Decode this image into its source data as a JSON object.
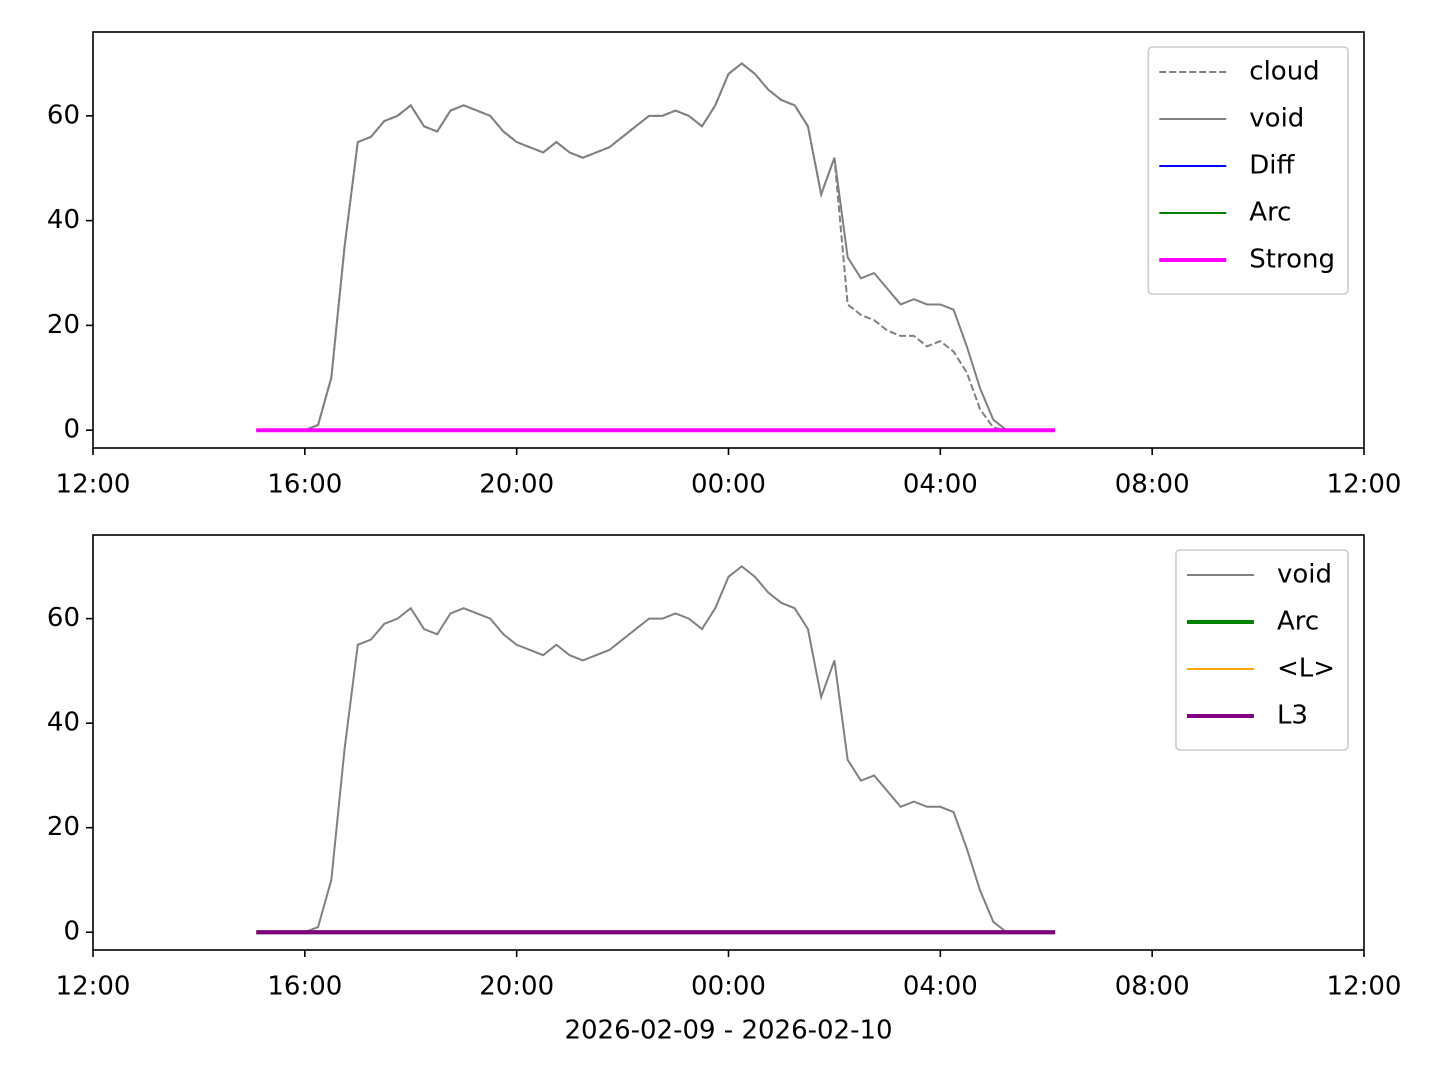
{
  "chart_data": [
    {
      "type": "line",
      "xlim": [
        "2026-02-09T12:00",
        "2026-02-10T12:00"
      ],
      "xticks": [
        {
          "value": "2026-02-09T12:00",
          "label": "12:00"
        },
        {
          "value": "2026-02-09T16:00",
          "label": "16:00"
        },
        {
          "value": "2026-02-09T20:00",
          "label": "20:00"
        },
        {
          "value": "2026-02-10T00:00",
          "label": "00:00"
        },
        {
          "value": "2026-02-10T04:00",
          "label": "04:00"
        },
        {
          "value": "2026-02-10T08:00",
          "label": "08:00"
        },
        {
          "value": "2026-02-10T12:00",
          "label": "12:00"
        }
      ],
      "ylim": [
        -3.4,
        76
      ],
      "yticks": [
        0,
        20,
        40,
        60
      ],
      "legend": "upper right",
      "series": [
        {
          "name": "cloud",
          "color": "#808080",
          "linestyle": "dashed",
          "linewidth": 1,
          "x": [
            "2026-02-09T16:00",
            "2026-02-09T16:15",
            "2026-02-09T16:30",
            "2026-02-09T16:45",
            "2026-02-09T17:00",
            "2026-02-09T17:15",
            "2026-02-09T17:30",
            "2026-02-09T17:45",
            "2026-02-09T18:00",
            "2026-02-09T18:15",
            "2026-02-09T18:30",
            "2026-02-09T18:45",
            "2026-02-09T19:00",
            "2026-02-09T19:15",
            "2026-02-09T19:30",
            "2026-02-09T19:45",
            "2026-02-09T20:00",
            "2026-02-09T20:15",
            "2026-02-09T20:30",
            "2026-02-09T20:45",
            "2026-02-09T21:00",
            "2026-02-09T21:15",
            "2026-02-09T21:30",
            "2026-02-09T21:45",
            "2026-02-09T22:00",
            "2026-02-09T22:15",
            "2026-02-09T22:30",
            "2026-02-09T22:45",
            "2026-02-09T23:00",
            "2026-02-09T23:15",
            "2026-02-09T23:30",
            "2026-02-09T23:45",
            "2026-02-10T00:00",
            "2026-02-10T00:15",
            "2026-02-10T00:30",
            "2026-02-10T00:45",
            "2026-02-10T01:00",
            "2026-02-10T01:15",
            "2026-02-10T01:30",
            "2026-02-10T01:45",
            "2026-02-10T02:00",
            "2026-02-10T02:15",
            "2026-02-10T02:30",
            "2026-02-10T02:45",
            "2026-02-10T03:00",
            "2026-02-10T03:15",
            "2026-02-10T03:30",
            "2026-02-10T03:45",
            "2026-02-10T04:00",
            "2026-02-10T04:15",
            "2026-02-10T04:30",
            "2026-02-10T04:45",
            "2026-02-10T05:00",
            "2026-02-10T05:15"
          ],
          "values": [
            0,
            1,
            10,
            35,
            55,
            56,
            59,
            60,
            62,
            58,
            57,
            61,
            62,
            61,
            60,
            57,
            55,
            54,
            53,
            55,
            53,
            52,
            53,
            54,
            56,
            58,
            60,
            60,
            61,
            60,
            58,
            62,
            68,
            70,
            68,
            65,
            63,
            62,
            58,
            45,
            52,
            24,
            22,
            21,
            19,
            18,
            18,
            16,
            17,
            15,
            11,
            4,
            0.5,
            0
          ]
        },
        {
          "name": "void",
          "color": "#808080",
          "linestyle": "solid",
          "linewidth": 1,
          "x": [
            "2026-02-09T16:00",
            "2026-02-09T16:15",
            "2026-02-09T16:30",
            "2026-02-09T16:45",
            "2026-02-09T17:00",
            "2026-02-09T17:15",
            "2026-02-09T17:30",
            "2026-02-09T17:45",
            "2026-02-09T18:00",
            "2026-02-09T18:15",
            "2026-02-09T18:30",
            "2026-02-09T18:45",
            "2026-02-09T19:00",
            "2026-02-09T19:15",
            "2026-02-09T19:30",
            "2026-02-09T19:45",
            "2026-02-09T20:00",
            "2026-02-09T20:15",
            "2026-02-09T20:30",
            "2026-02-09T20:45",
            "2026-02-09T21:00",
            "2026-02-09T21:15",
            "2026-02-09T21:30",
            "2026-02-09T21:45",
            "2026-02-09T22:00",
            "2026-02-09T22:15",
            "2026-02-09T22:30",
            "2026-02-09T22:45",
            "2026-02-09T23:00",
            "2026-02-09T23:15",
            "2026-02-09T23:30",
            "2026-02-09T23:45",
            "2026-02-10T00:00",
            "2026-02-10T00:15",
            "2026-02-10T00:30",
            "2026-02-10T00:45",
            "2026-02-10T01:00",
            "2026-02-10T01:15",
            "2026-02-10T01:30",
            "2026-02-10T01:45",
            "2026-02-10T02:00",
            "2026-02-10T02:15",
            "2026-02-10T02:30",
            "2026-02-10T02:45",
            "2026-02-10T03:00",
            "2026-02-10T03:15",
            "2026-02-10T03:30",
            "2026-02-10T03:45",
            "2026-02-10T04:00",
            "2026-02-10T04:15",
            "2026-02-10T04:30",
            "2026-02-10T04:45",
            "2026-02-10T05:00",
            "2026-02-10T05:15"
          ],
          "values": [
            0,
            1,
            10,
            35,
            55,
            56,
            59,
            60,
            62,
            58,
            57,
            61,
            62,
            61,
            60,
            57,
            55,
            54,
            53,
            55,
            53,
            52,
            53,
            54,
            56,
            58,
            60,
            60,
            61,
            60,
            58,
            62,
            68,
            70,
            68,
            65,
            63,
            62,
            58,
            45,
            52,
            33,
            29,
            30,
            27,
            24,
            25,
            24,
            24,
            23,
            16,
            8,
            2,
            0
          ]
        },
        {
          "name": "Diff",
          "color": "#0000ff",
          "linestyle": "solid",
          "linewidth": 1,
          "x": [
            "2026-02-09T15:05",
            "2026-02-10T06:10"
          ],
          "values": [
            0,
            0
          ]
        },
        {
          "name": "Arc",
          "color": "#008000",
          "linestyle": "solid",
          "linewidth": 1,
          "x": [
            "2026-02-09T15:05",
            "2026-02-10T06:10"
          ],
          "values": [
            0,
            0
          ]
        },
        {
          "name": "Strong",
          "color": "#ff00ff",
          "linestyle": "solid",
          "linewidth": 2,
          "x": [
            "2026-02-09T15:05",
            "2026-02-10T06:10"
          ],
          "values": [
            0,
            0
          ]
        }
      ]
    },
    {
      "type": "line",
      "x_label": "2026-02-09 - 2026-02-10",
      "xlim": [
        "2026-02-09T12:00",
        "2026-02-10T12:00"
      ],
      "xticks": [
        {
          "value": "2026-02-09T12:00",
          "label": "12:00"
        },
        {
          "value": "2026-02-09T16:00",
          "label": "16:00"
        },
        {
          "value": "2026-02-09T20:00",
          "label": "20:00"
        },
        {
          "value": "2026-02-10T00:00",
          "label": "00:00"
        },
        {
          "value": "2026-02-10T04:00",
          "label": "04:00"
        },
        {
          "value": "2026-02-10T08:00",
          "label": "08:00"
        },
        {
          "value": "2026-02-10T12:00",
          "label": "12:00"
        }
      ],
      "ylim": [
        -3.4,
        76
      ],
      "yticks": [
        0,
        20,
        40,
        60
      ],
      "legend": "upper right",
      "series": [
        {
          "name": "void",
          "color": "#808080",
          "linestyle": "solid",
          "linewidth": 1,
          "x": [
            "2026-02-09T16:00",
            "2026-02-09T16:15",
            "2026-02-09T16:30",
            "2026-02-09T16:45",
            "2026-02-09T17:00",
            "2026-02-09T17:15",
            "2026-02-09T17:30",
            "2026-02-09T17:45",
            "2026-02-09T18:00",
            "2026-02-09T18:15",
            "2026-02-09T18:30",
            "2026-02-09T18:45",
            "2026-02-09T19:00",
            "2026-02-09T19:15",
            "2026-02-09T19:30",
            "2026-02-09T19:45",
            "2026-02-09T20:00",
            "2026-02-09T20:15",
            "2026-02-09T20:30",
            "2026-02-09T20:45",
            "2026-02-09T21:00",
            "2026-02-09T21:15",
            "2026-02-09T21:30",
            "2026-02-09T21:45",
            "2026-02-09T22:00",
            "2026-02-09T22:15",
            "2026-02-09T22:30",
            "2026-02-09T22:45",
            "2026-02-09T23:00",
            "2026-02-09T23:15",
            "2026-02-09T23:30",
            "2026-02-09T23:45",
            "2026-02-10T00:00",
            "2026-02-10T00:15",
            "2026-02-10T00:30",
            "2026-02-10T00:45",
            "2026-02-10T01:00",
            "2026-02-10T01:15",
            "2026-02-10T01:30",
            "2026-02-10T01:45",
            "2026-02-10T02:00",
            "2026-02-10T02:15",
            "2026-02-10T02:30",
            "2026-02-10T02:45",
            "2026-02-10T03:00",
            "2026-02-10T03:15",
            "2026-02-10T03:30",
            "2026-02-10T03:45",
            "2026-02-10T04:00",
            "2026-02-10T04:15",
            "2026-02-10T04:30",
            "2026-02-10T04:45",
            "2026-02-10T05:00",
            "2026-02-10T05:15"
          ],
          "values": [
            0,
            1,
            10,
            35,
            55,
            56,
            59,
            60,
            62,
            58,
            57,
            61,
            62,
            61,
            60,
            57,
            55,
            54,
            53,
            55,
            53,
            52,
            53,
            54,
            56,
            58,
            60,
            60,
            61,
            60,
            58,
            62,
            68,
            70,
            68,
            65,
            63,
            62,
            58,
            45,
            52,
            33,
            29,
            30,
            27,
            24,
            25,
            24,
            24,
            23,
            16,
            8,
            2,
            0
          ]
        },
        {
          "name": "Arc",
          "color": "#008000",
          "linestyle": "solid",
          "linewidth": 2,
          "x": [
            "2026-02-09T15:05",
            "2026-02-10T06:10"
          ],
          "values": [
            0,
            0
          ]
        },
        {
          "name": "<L>",
          "color": "#ffa500",
          "linestyle": "solid",
          "linewidth": 1,
          "x": [
            "2026-02-09T15:05",
            "2026-02-10T06:10"
          ],
          "values": [
            0,
            0
          ]
        },
        {
          "name": "L3",
          "color": "#800080",
          "linestyle": "solid",
          "linewidth": 2,
          "x": [
            "2026-02-09T15:05",
            "2026-02-10T06:10"
          ],
          "values": [
            0,
            0
          ]
        }
      ]
    }
  ]
}
